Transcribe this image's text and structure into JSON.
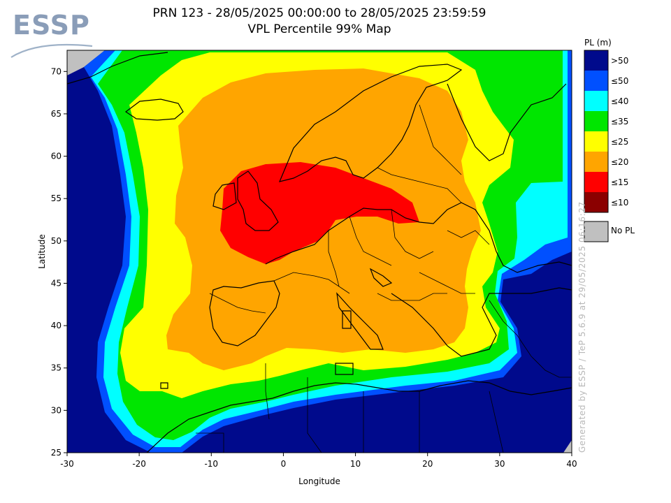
{
  "logo": {
    "text": "ESSP"
  },
  "title": {
    "line1": "PRN 123 - 28/05/2025 00:00:00 to 28/05/2025 23:59:59",
    "line2": "VPL Percentile 99% Map"
  },
  "axes": {
    "xlabel": "Longitude",
    "ylabel": "Latitude",
    "x_range": [
      -30,
      40
    ],
    "y_range": [
      25,
      72.5
    ],
    "x_ticks": [
      "-30",
      "-20",
      "-10",
      "0",
      "10",
      "20",
      "30",
      "40"
    ],
    "y_ticks": [
      "25",
      "30",
      "35",
      "40",
      "45",
      "50",
      "55",
      "60",
      "65",
      "70"
    ]
  },
  "credit": "Generated by ESSP / TeP 5.6.9 at 29/05/2025 06:16:27",
  "legend": {
    "title": "PL (m)",
    "items": [
      {
        "label": ">50",
        "color": "#000a8c"
      },
      {
        "label": "≤50",
        "color": "#0050ff"
      },
      {
        "label": "≤40",
        "color": "#00ffff"
      },
      {
        "label": "≤35",
        "color": "#00e600"
      },
      {
        "label": "≤25",
        "color": "#ffff00"
      },
      {
        "label": "≤20",
        "color": "#ffa500"
      },
      {
        "label": "≤15",
        "color": "#ff0000"
      },
      {
        "label": "≤10",
        "color": "#8b0000"
      }
    ],
    "no_pl": {
      "label": "No PL",
      "color": "#c0c0c0"
    }
  }
}
